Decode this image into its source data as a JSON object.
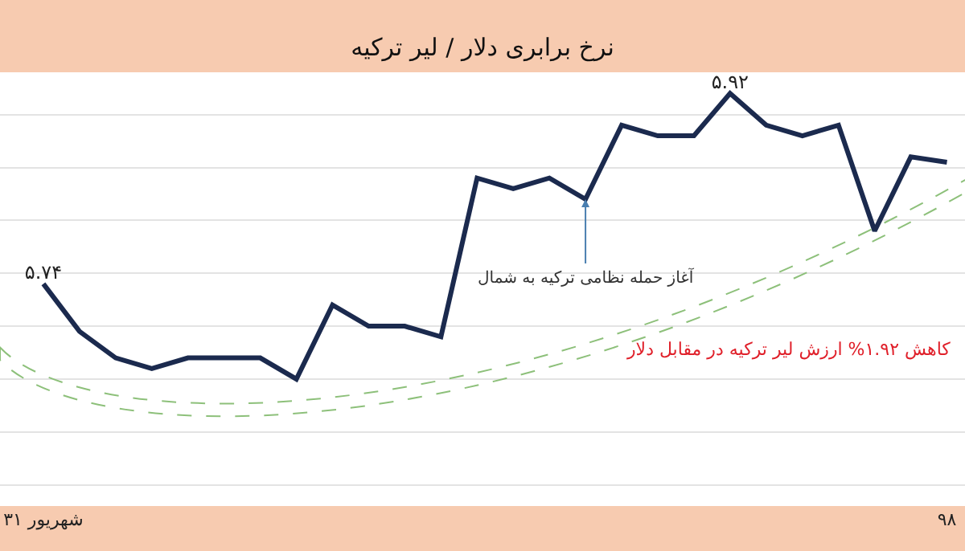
{
  "chart_data": {
    "type": "line",
    "title": "نرخ برابری دلار / لیر ترکیه",
    "categories": [
      "۳۱ شهریور",
      null,
      null,
      null,
      null,
      null,
      null,
      null,
      null,
      null,
      null,
      null,
      null,
      null,
      null,
      null,
      null,
      null,
      null,
      null,
      null,
      null,
      null,
      null,
      null,
      "۹۸"
    ],
    "series": [
      {
        "color": "#1b2a4e",
        "values": [
          5.74,
          5.695,
          5.67,
          5.66,
          5.67,
          5.67,
          5.67,
          5.65,
          5.72,
          5.7,
          5.7,
          5.69,
          5.84,
          5.83,
          5.84,
          5.82,
          5.89,
          5.88,
          5.88,
          5.92,
          5.89,
          5.88,
          5.89,
          5.79,
          5.86,
          5.855
        ],
        "value_labels": [
          "۵.۷۴",
          null,
          null,
          null,
          null,
          null,
          null,
          null,
          null,
          null,
          null,
          null,
          null,
          null,
          null,
          null,
          null,
          null,
          null,
          "۵.۹۲",
          null,
          null,
          null,
          null,
          null,
          null
        ]
      }
    ],
    "ylim": [
      5.53,
      5.94
    ],
    "yticks": [
      {
        "value": 5.55,
        "label": null
      },
      {
        "value": 5.6,
        "label": null
      },
      {
        "value": 5.65,
        "label": null
      },
      {
        "value": 5.7,
        "label": null
      },
      {
        "value": 5.75,
        "label": null
      },
      {
        "value": 5.8,
        "label": null
      },
      {
        "value": 5.85,
        "label": null
      },
      {
        "value": 5.9,
        "label": null
      }
    ],
    "grid": "y",
    "tick_labels": "x",
    "marker": "none",
    "line_style": "solid",
    "annotations": [
      "آغاز حمله نظامی ترکیه به شمال",
      "کاهش ۱.۹۲% ارزش لیر ترکیه در مقابل دلار"
    ]
  }
}
